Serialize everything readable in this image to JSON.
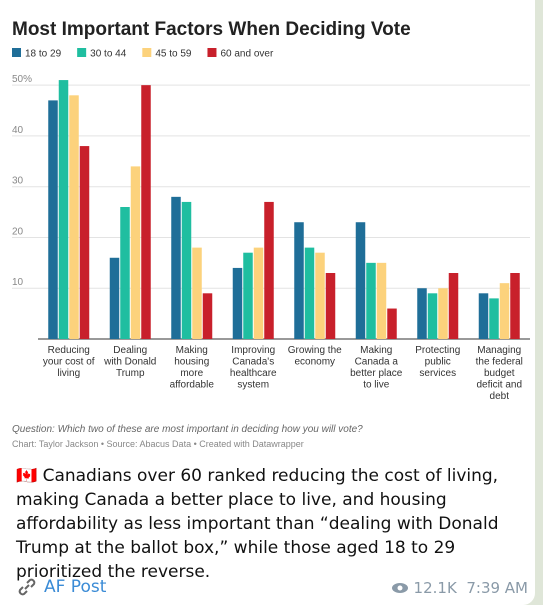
{
  "chart_data": {
    "type": "bar",
    "title": "Most Important Factors When Deciding Vote",
    "categories": [
      "Reducing\nyour cost of\nliving",
      "Dealing\nwith Donald\nTrump",
      "Making\nhousing\nmore\naffordable",
      "Improving\nCanada's\nhealthcare\nsystem",
      "Growing the\neconomy",
      "Making\nCanada a\nbetter place\nto live",
      "Protecting\npublic\nservices",
      "Managing\nthe federal\nbudget\ndeficit and\ndebt"
    ],
    "series": [
      {
        "name": "18 to 29",
        "color": "#1f6e98",
        "values": [
          47,
          16,
          28,
          14,
          23,
          23,
          10,
          9
        ]
      },
      {
        "name": "30 to 44",
        "color": "#1fbea0",
        "values": [
          51,
          26,
          27,
          17,
          18,
          15,
          9,
          8
        ]
      },
      {
        "name": "45 to 59",
        "color": "#fcd27c",
        "values": [
          48,
          34,
          18,
          18,
          17,
          15,
          10,
          11
        ]
      },
      {
        "name": "60 and over",
        "color": "#c8202b",
        "values": [
          38,
          50,
          9,
          27,
          13,
          6,
          13,
          13
        ]
      }
    ],
    "ylim": [
      0,
      52
    ],
    "yticks": [
      10,
      20,
      30,
      40,
      {
        "value": 50,
        "label": "50%"
      }
    ],
    "grid": true,
    "note": "Question: Which two of these are most important in deciding how you will vote?",
    "credit": "Chart: Taylor Jackson • Source: Abacus Data • Created with Datawrapper"
  },
  "message": "🇨🇦 Canadians over 60 ranked reducing the cost of living, making Canada a better place to live, and housing affordability as less important than “dealing with Donald Trump at the ballot box,” while those aged 18 to 29 prioritized the reverse.",
  "footer": {
    "channel": "AF Post",
    "views": "12.1K",
    "time": "7:39 AM"
  }
}
